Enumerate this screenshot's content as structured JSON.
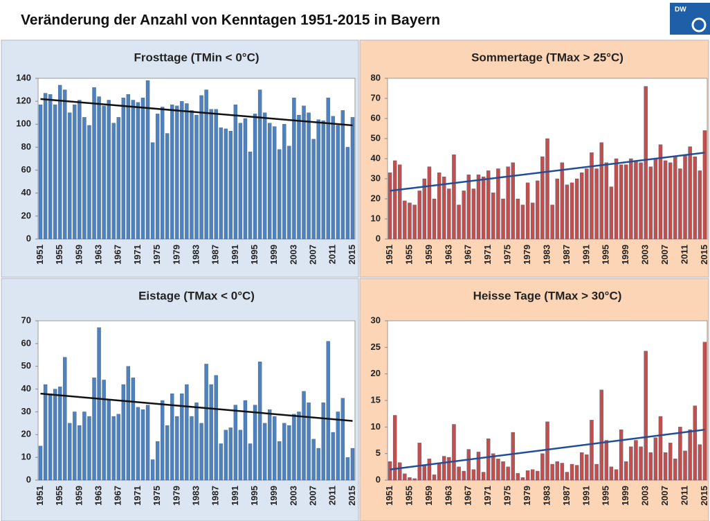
{
  "page_title": "Veränderung der Anzahl von Kenntagen 1951-2015 in Bayern",
  "logo": "DW",
  "chart_data": [
    {
      "type": "bar",
      "title": "Frosttage (TMin < 0°C)",
      "background": "#dce6f2",
      "color": "#4f81bd",
      "grid": false,
      "categories": [
        "1951",
        null,
        null,
        null,
        "1955",
        null,
        null,
        null,
        "1959",
        null,
        null,
        null,
        "1963",
        null,
        null,
        null,
        "1967",
        null,
        null,
        null,
        "1971",
        null,
        null,
        null,
        "1975",
        null,
        null,
        null,
        "1979",
        null,
        null,
        null,
        "1983",
        null,
        null,
        null,
        "1987",
        null,
        null,
        null,
        "1991",
        null,
        null,
        null,
        "1995",
        null,
        null,
        null,
        "1999",
        null,
        null,
        null,
        "2003",
        null,
        null,
        null,
        "2007",
        null,
        null,
        null,
        "2011",
        null,
        null,
        null,
        "2015"
      ],
      "values": [
        117,
        127,
        126,
        117,
        134,
        130,
        110,
        117,
        121,
        106,
        99,
        132,
        124,
        116,
        121,
        101,
        106,
        123,
        126,
        121,
        119,
        123,
        138,
        84,
        109,
        115,
        92,
        117,
        116,
        120,
        118,
        112,
        108,
        125,
        130,
        113,
        113,
        97,
        96,
        94,
        117,
        101,
        105,
        76,
        109,
        130,
        110,
        101,
        98,
        78,
        100,
        81,
        123,
        108,
        116,
        110,
        87,
        104,
        103,
        123,
        107,
        99,
        112,
        80,
        106
      ],
      "ylim": [
        0,
        140
      ],
      "yticks": [
        0,
        20,
        40,
        60,
        80,
        100,
        120,
        140
      ],
      "trend": {
        "values": [
          122,
          99
        ],
        "color": "#111111"
      }
    },
    {
      "type": "bar",
      "title": "Sommertage (TMax > 25°C)",
      "background": "#fbd5b5",
      "color": "#c0504d",
      "grid": false,
      "categories": [
        "1951",
        null,
        null,
        null,
        "1955",
        null,
        null,
        null,
        "1959",
        null,
        null,
        null,
        "1963",
        null,
        null,
        null,
        "1967",
        null,
        null,
        null,
        "1971",
        null,
        null,
        null,
        "1975",
        null,
        null,
        null,
        "1979",
        null,
        null,
        null,
        "1983",
        null,
        null,
        null,
        "1987",
        null,
        null,
        null,
        "1991",
        null,
        null,
        null,
        "1995",
        null,
        null,
        null,
        "1999",
        null,
        null,
        null,
        "2003",
        null,
        null,
        null,
        "2007",
        null,
        null,
        null,
        "2011",
        null,
        null,
        null,
        "2015"
      ],
      "values": [
        33,
        39,
        37,
        19,
        18,
        17,
        24,
        30,
        36,
        20,
        33,
        31,
        25,
        42,
        17,
        24,
        32,
        25,
        32,
        31,
        34,
        23,
        35,
        20,
        36,
        38,
        20,
        17,
        28,
        18,
        29,
        41,
        50,
        17,
        30,
        38,
        27,
        28,
        30,
        33,
        35,
        43,
        35,
        48,
        38,
        26,
        40,
        37,
        37,
        40,
        39,
        38,
        76,
        36,
        40,
        47,
        39,
        38,
        41,
        35,
        42,
        46,
        41,
        34,
        54
      ],
      "ylim": [
        0,
        80
      ],
      "yticks": [
        0,
        10,
        20,
        30,
        40,
        50,
        60,
        70,
        80
      ],
      "trend": {
        "values": [
          24,
          43
        ],
        "color": "#1f4e9a"
      }
    },
    {
      "type": "bar",
      "title": "Eistage (TMax < 0°C)",
      "background": "#dce6f2",
      "color": "#4f81bd",
      "grid": false,
      "categories": [
        "1951",
        null,
        null,
        null,
        "1955",
        null,
        null,
        null,
        "1959",
        null,
        null,
        null,
        "1963",
        null,
        null,
        null,
        "1967",
        null,
        null,
        null,
        "1971",
        null,
        null,
        null,
        "1975",
        null,
        null,
        null,
        "1979",
        null,
        null,
        null,
        "1983",
        null,
        null,
        null,
        "1987",
        null,
        null,
        null,
        "1991",
        null,
        null,
        null,
        "1995",
        null,
        null,
        null,
        "1999",
        null,
        null,
        null,
        "2003",
        null,
        null,
        null,
        "2007",
        null,
        null,
        null,
        "2011",
        null,
        null,
        null,
        "2015"
      ],
      "values": [
        15,
        42,
        38,
        40,
        41,
        54,
        25,
        30,
        24,
        30,
        28,
        45,
        67,
        44,
        35,
        28,
        29,
        42,
        50,
        45,
        32,
        31,
        33,
        9,
        17,
        35,
        24,
        38,
        28,
        38,
        42,
        28,
        34,
        25,
        51,
        42,
        46,
        16,
        22,
        23,
        33,
        22,
        35,
        16,
        33,
        52,
        25,
        31,
        28,
        17,
        25,
        24,
        29,
        30,
        39,
        34,
        18,
        14,
        34,
        61,
        21,
        30,
        36,
        10,
        14
      ],
      "ylim": [
        0,
        70
      ],
      "yticks": [
        0,
        10,
        20,
        30,
        40,
        50,
        60,
        70
      ],
      "trend": {
        "values": [
          38,
          26
        ],
        "color": "#111111"
      }
    },
    {
      "type": "bar",
      "title": "Heisse Tage (TMax > 30°C)",
      "background": "#fbd5b5",
      "color": "#c0504d",
      "grid": false,
      "categories": [
        "1951",
        null,
        null,
        null,
        "1955",
        null,
        null,
        null,
        "1959",
        null,
        null,
        null,
        "1963",
        null,
        null,
        null,
        "1967",
        null,
        null,
        null,
        "1971",
        null,
        null,
        null,
        "1975",
        null,
        null,
        null,
        "1979",
        null,
        null,
        null,
        "1983",
        null,
        null,
        null,
        "1987",
        null,
        null,
        null,
        "1991",
        null,
        null,
        null,
        "1995",
        null,
        null,
        null,
        "1999",
        null,
        null,
        null,
        "2003",
        null,
        null,
        null,
        "2007",
        null,
        null,
        null,
        "2011",
        null,
        null,
        null,
        "2015"
      ],
      "values": [
        3.5,
        12.2,
        3.3,
        1.2,
        0.5,
        0.3,
        7,
        2.8,
        4,
        1,
        3.3,
        4.5,
        4.3,
        10.5,
        2.5,
        1.7,
        5.8,
        2,
        5.3,
        1.5,
        7.8,
        5,
        4,
        3.5,
        2.5,
        9,
        1.3,
        0.5,
        1.8,
        2,
        1.7,
        5,
        11,
        3,
        3.5,
        3.2,
        1.5,
        3,
        2.8,
        5.2,
        4.8,
        11.3,
        3,
        17,
        7.5,
        2.5,
        2,
        9.5,
        3.5,
        6.3,
        7.5,
        6.3,
        24.3,
        5.2,
        8,
        12,
        5.2,
        7,
        4,
        10,
        5.5,
        9.5,
        14,
        6.7,
        26
      ],
      "ylim": [
        0,
        30
      ],
      "yticks": [
        0,
        5,
        10,
        15,
        20,
        25,
        30
      ],
      "trend": {
        "values": [
          2,
          9.5
        ],
        "color": "#1f4e9a"
      }
    }
  ]
}
